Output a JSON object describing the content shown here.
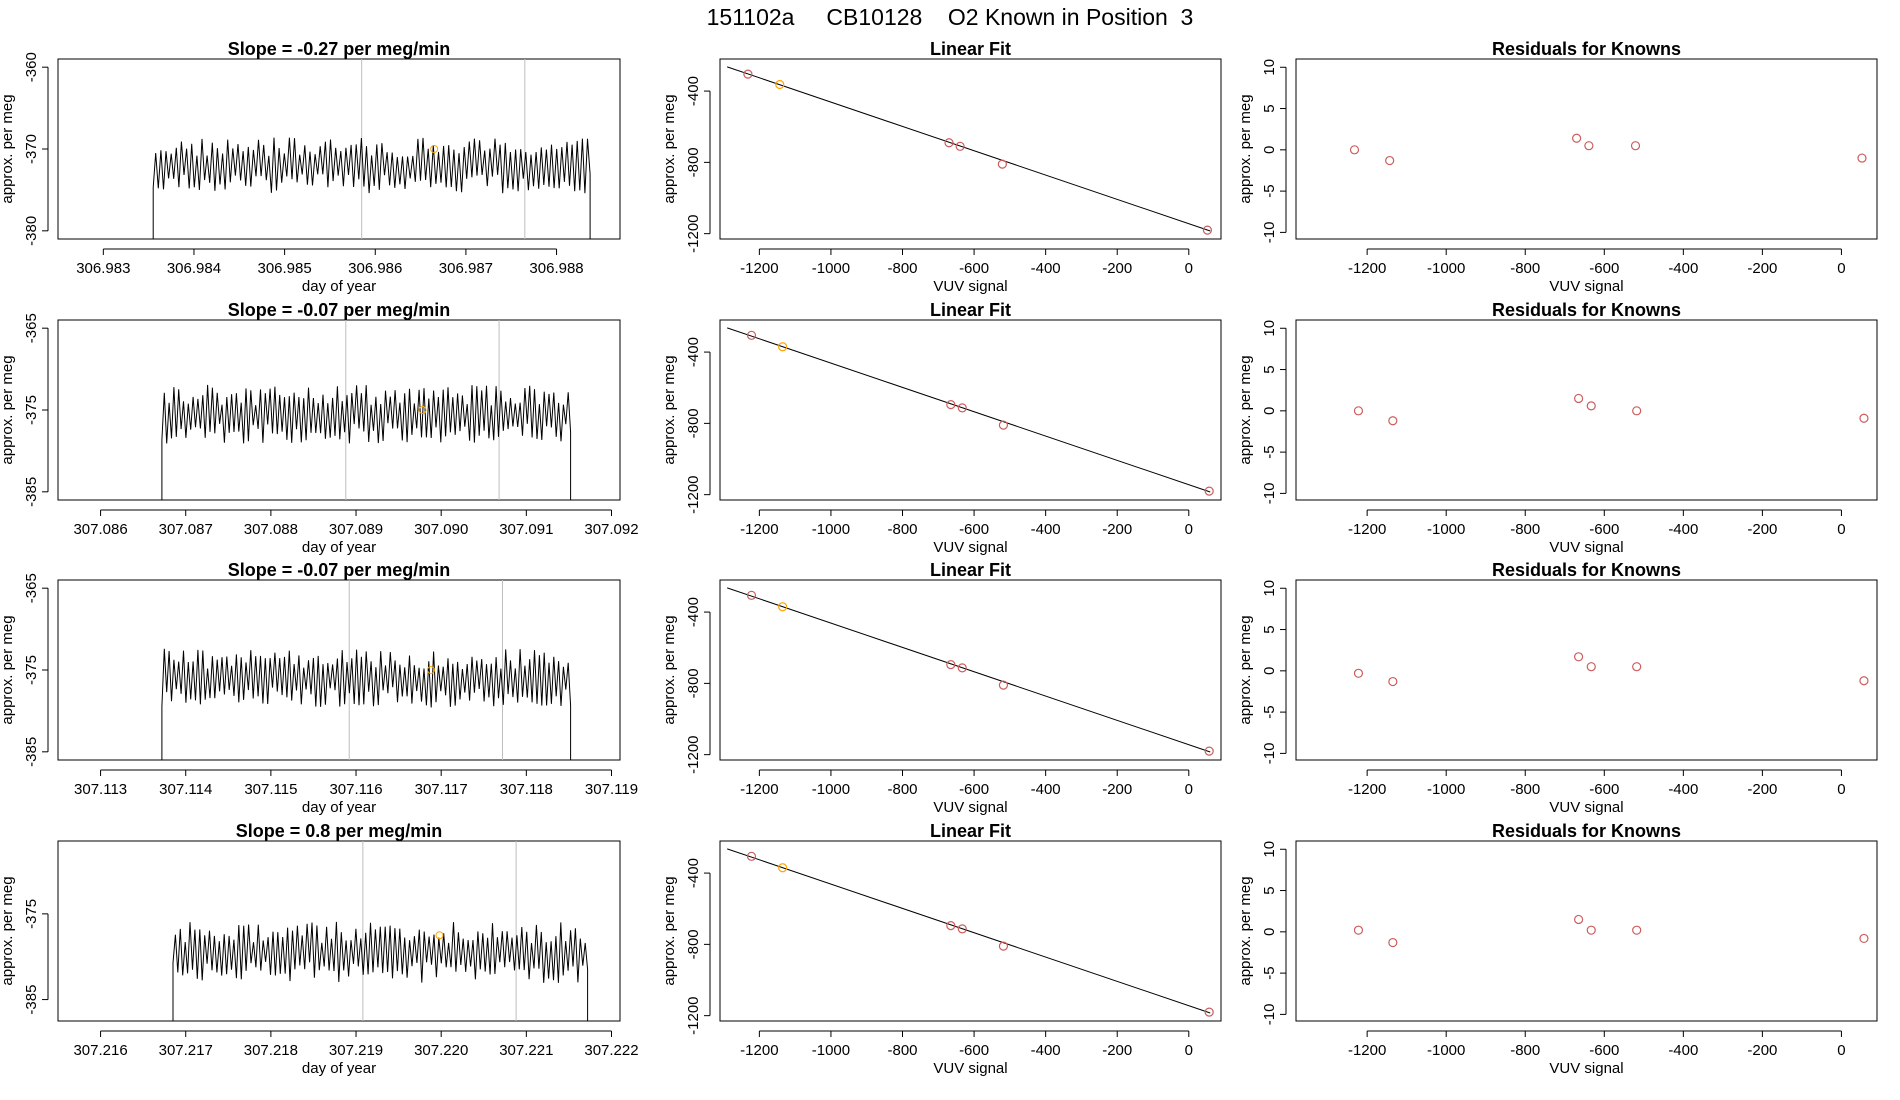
{
  "title": "151102a     CB10128    O2 Known in Position  3",
  "colors": {
    "trace": "#000000",
    "vline": "#bebebe",
    "knownPoint": "#cd5c5c",
    "highlight": "#ffa500",
    "fitLine": "#000000"
  },
  "chart_data": [
    {
      "type": "line",
      "row": 0,
      "title": "Slope =  -0.27  per meg/min",
      "xlabel": "day of year",
      "ylabel": "approx. per meg",
      "xlim": [
        306.9825,
        306.9887
      ],
      "ylim": [
        -381,
        -359
      ],
      "xticks": [
        306.983,
        306.984,
        306.985,
        306.986,
        306.987,
        306.988
      ],
      "xtick_labels": [
        "306.983",
        "306.984",
        "306.985",
        "306.986",
        "306.987",
        "306.988"
      ],
      "yticks": [
        -360,
        -370,
        -380
      ],
      "ytick_labels": [
        "-360",
        "-370",
        "-380"
      ],
      "trace_x_range": [
        306.98355,
        306.98837
      ],
      "trace_level": -372,
      "trace_amplitude": 3.4,
      "vlines": [
        306.98585,
        306.98765
      ],
      "highlight_point": {
        "x": 306.98665,
        "y": -370
      }
    },
    {
      "type": "scatter",
      "row": 0,
      "title": "Linear Fit",
      "xlabel": "VUV signal",
      "ylabel": "approx. per meg",
      "xlim": [
        -1310,
        90
      ],
      "ylim": [
        -1230,
        -220
      ],
      "xticks": [
        -1200,
        -1000,
        -800,
        -600,
        -400,
        -200,
        0
      ],
      "xtick_labels": [
        "-1200",
        "-1000",
        "-800",
        "-600",
        "-400",
        "-200",
        "0"
      ],
      "yticks": [
        -400,
        -800,
        -1200
      ],
      "ytick_labels": [
        "-400",
        "-800",
        "-1200"
      ],
      "x": [
        -1232,
        -1143,
        -670,
        -639,
        -521,
        52
      ],
      "y": [
        -305,
        -363,
        -690,
        -710,
        -810,
        -1180
      ],
      "point_colors": [
        "knownPoint",
        "highlight",
        "knownPoint",
        "knownPoint",
        "knownPoint",
        "knownPoint"
      ],
      "fit_line": {
        "x": [
          -1290,
          60
        ],
        "y": [
          -264,
          -1185
        ]
      }
    },
    {
      "type": "scatter",
      "row": 0,
      "title": "Residuals for Knowns",
      "xlabel": "VUV signal",
      "ylabel": "approx. per meg",
      "xlim": [
        -1380,
        90
      ],
      "ylim": [
        -10.8,
        11
      ],
      "xticks": [
        -1200,
        -1000,
        -800,
        -600,
        -400,
        -200,
        0
      ],
      "xtick_labels": [
        "-1200",
        "-1000",
        "-800",
        "-600",
        "-400",
        "-200",
        "0"
      ],
      "yticks": [
        10,
        5,
        0,
        -5,
        -10
      ],
      "ytick_labels": [
        "10",
        "5",
        "0",
        "-5",
        "-10"
      ],
      "x": [
        -1232,
        -1143,
        -670,
        -639,
        -521,
        52
      ],
      "y": [
        0,
        -1.3,
        1.4,
        0.5,
        0.5,
        -1
      ]
    },
    {
      "type": "line",
      "row": 1,
      "title": "Slope =  -0.07  per meg/min",
      "xlabel": "day of year",
      "ylabel": "approx. per meg",
      "xlim": [
        307.0855,
        307.0921
      ],
      "ylim": [
        -386,
        -364
      ],
      "xticks": [
        307.086,
        307.087,
        307.088,
        307.089,
        307.09,
        307.091,
        307.092
      ],
      "xtick_labels": [
        "307.086",
        "307.087",
        "307.088",
        "307.089",
        "307.090",
        "307.091",
        "307.092"
      ],
      "yticks": [
        -365,
        -375,
        -385
      ],
      "ytick_labels": [
        "-365",
        "-375",
        "-385"
      ],
      "trace_x_range": [
        307.08672,
        307.09152
      ],
      "trace_level": -375.5,
      "trace_amplitude": 3.6,
      "vlines": [
        307.08888,
        307.09068
      ],
      "highlight_point": {
        "x": 307.08978,
        "y": -375
      }
    },
    {
      "type": "scatter",
      "row": 1,
      "title": "Linear Fit",
      "xlabel": "VUV signal",
      "ylabel": "approx. per meg",
      "xlim": [
        -1310,
        90
      ],
      "ylim": [
        -1230,
        -220
      ],
      "xticks": [
        -1200,
        -1000,
        -800,
        -600,
        -400,
        -200,
        0
      ],
      "xtick_labels": [
        "-1200",
        "-1000",
        "-800",
        "-600",
        "-400",
        "-200",
        "0"
      ],
      "yticks": [
        -400,
        -800,
        -1200
      ],
      "ytick_labels": [
        "-400",
        "-800",
        "-1200"
      ],
      "x": [
        -1222,
        -1135,
        -665,
        -633,
        -518,
        57
      ],
      "y": [
        -306,
        -370,
        -695,
        -713,
        -810,
        -1180
      ],
      "point_colors": [
        "knownPoint",
        "highlight",
        "knownPoint",
        "knownPoint",
        "knownPoint",
        "knownPoint"
      ],
      "fit_line": {
        "x": [
          -1290,
          60
        ],
        "y": [
          -264,
          -1185
        ]
      }
    },
    {
      "type": "scatter",
      "row": 1,
      "title": "Residuals for Knowns",
      "xlabel": "VUV signal",
      "ylabel": "approx. per meg",
      "xlim": [
        -1380,
        90
      ],
      "ylim": [
        -10.8,
        11
      ],
      "xticks": [
        -1200,
        -1000,
        -800,
        -600,
        -400,
        -200,
        0
      ],
      "xtick_labels": [
        "-1200",
        "-1000",
        "-800",
        "-600",
        "-400",
        "-200",
        "0"
      ],
      "yticks": [
        10,
        5,
        0,
        -5,
        -10
      ],
      "ytick_labels": [
        "10",
        "5",
        "0",
        "-5",
        "-10"
      ],
      "x": [
        -1222,
        -1135,
        -665,
        -633,
        -518,
        57
      ],
      "y": [
        0,
        -1.2,
        1.5,
        0.6,
        0,
        -0.9
      ]
    },
    {
      "type": "line",
      "row": 2,
      "title": "Slope =  -0.07  per meg/min",
      "xlabel": "day of year",
      "ylabel": "approx. per meg",
      "xlim": [
        307.1125,
        307.1191
      ],
      "ylim": [
        -386,
        -364
      ],
      "xticks": [
        307.113,
        307.114,
        307.115,
        307.116,
        307.117,
        307.118,
        307.119
      ],
      "xtick_labels": [
        "307.113",
        "307.114",
        "307.115",
        "307.116",
        "307.117",
        "307.118",
        "307.119"
      ],
      "yticks": [
        -365,
        -375,
        -385
      ],
      "ytick_labels": [
        "-365",
        "-375",
        "-385"
      ],
      "trace_x_range": [
        307.11372,
        307.11852
      ],
      "trace_level": -376,
      "trace_amplitude": 3.6,
      "vlines": [
        307.11592,
        307.11772
      ],
      "highlight_point": {
        "x": 307.11688,
        "y": -375
      }
    },
    {
      "type": "scatter",
      "row": 2,
      "title": "Linear Fit",
      "xlabel": "VUV signal",
      "ylabel": "approx. per meg",
      "xlim": [
        -1310,
        90
      ],
      "ylim": [
        -1230,
        -220
      ],
      "xticks": [
        -1200,
        -1000,
        -800,
        -600,
        -400,
        -200,
        0
      ],
      "xtick_labels": [
        "-1200",
        "-1000",
        "-800",
        "-600",
        "-400",
        "-200",
        "0"
      ],
      "yticks": [
        -400,
        -800,
        -1200
      ],
      "ytick_labels": [
        "-400",
        "-800",
        "-1200"
      ],
      "x": [
        -1222,
        -1135,
        -665,
        -633,
        -518,
        57
      ],
      "y": [
        -306,
        -370,
        -695,
        -713,
        -810,
        -1180
      ],
      "point_colors": [
        "knownPoint",
        "highlight",
        "knownPoint",
        "knownPoint",
        "knownPoint",
        "knownPoint"
      ],
      "fit_line": {
        "x": [
          -1290,
          60
        ],
        "y": [
          -264,
          -1185
        ]
      }
    },
    {
      "type": "scatter",
      "row": 2,
      "title": "Residuals for Knowns",
      "xlabel": "VUV signal",
      "ylabel": "approx. per meg",
      "xlim": [
        -1380,
        90
      ],
      "ylim": [
        -10.8,
        11
      ],
      "xticks": [
        -1200,
        -1000,
        -800,
        -600,
        -400,
        -200,
        0
      ],
      "xtick_labels": [
        "-1200",
        "-1000",
        "-800",
        "-600",
        "-400",
        "-200",
        "0"
      ],
      "yticks": [
        10,
        5,
        0,
        -5,
        -10
      ],
      "ytick_labels": [
        "10",
        "5",
        "0",
        "-5",
        "-10"
      ],
      "x": [
        -1222,
        -1135,
        -665,
        -633,
        -518,
        57
      ],
      "y": [
        -0.3,
        -1.3,
        1.7,
        0.5,
        0.5,
        -1.2
      ]
    },
    {
      "type": "line",
      "row": 3,
      "title": "Slope =  0.8  per meg/min",
      "xlabel": "day of year",
      "ylabel": "approx. per meg",
      "xlim": [
        307.2155,
        307.2221
      ],
      "ylim": [
        -387.5,
        -366.5
      ],
      "xticks": [
        307.216,
        307.217,
        307.218,
        307.219,
        307.22,
        307.221,
        307.222
      ],
      "xtick_labels": [
        "307.216",
        "307.217",
        "307.218",
        "307.219",
        "307.220",
        "307.221",
        "307.222"
      ],
      "yticks": [
        -375,
        -385
      ],
      "ytick_labels": [
        "-375",
        "-385"
      ],
      "trace_x_range": [
        307.21685,
        307.22172
      ],
      "trace_level": -379.5,
      "trace_amplitude": 3.6,
      "vlines": [
        307.21908,
        307.22088
      ],
      "highlight_point": {
        "x": 307.21998,
        "y": -377.5
      }
    },
    {
      "type": "scatter",
      "row": 3,
      "title": "Linear Fit",
      "xlabel": "VUV signal",
      "ylabel": "approx. per meg",
      "xlim": [
        -1310,
        90
      ],
      "ylim": [
        -1230,
        -220
      ],
      "xticks": [
        -1200,
        -1000,
        -800,
        -600,
        -400,
        -200,
        0
      ],
      "xtick_labels": [
        "-1200",
        "-1000",
        "-800",
        "-600",
        "-400",
        "-200",
        "0"
      ],
      "yticks": [
        -400,
        -800,
        -1200
      ],
      "ytick_labels": [
        "-400",
        "-800",
        "-1200"
      ],
      "x": [
        -1222,
        -1135,
        -665,
        -633,
        -518,
        57
      ],
      "y": [
        -306,
        -370,
        -695,
        -713,
        -810,
        -1180
      ],
      "point_colors": [
        "knownPoint",
        "highlight",
        "knownPoint",
        "knownPoint",
        "knownPoint",
        "knownPoint"
      ],
      "fit_line": {
        "x": [
          -1290,
          60
        ],
        "y": [
          -264,
          -1185
        ]
      }
    },
    {
      "type": "scatter",
      "row": 3,
      "title": "Residuals for Knowns",
      "xlabel": "VUV signal",
      "ylabel": "approx. per meg",
      "xlim": [
        -1380,
        90
      ],
      "ylim": [
        -10.8,
        11
      ],
      "xticks": [
        -1200,
        -1000,
        -800,
        -600,
        -400,
        -200,
        0
      ],
      "xtick_labels": [
        "-1200",
        "-1000",
        "-800",
        "-600",
        "-400",
        "-200",
        "0"
      ],
      "yticks": [
        10,
        5,
        0,
        -5,
        -10
      ],
      "ytick_labels": [
        "10",
        "5",
        "0",
        "-5",
        "-10"
      ],
      "x": [
        -1222,
        -1135,
        -665,
        -633,
        -518,
        57
      ],
      "y": [
        0.2,
        -1.3,
        1.5,
        0.2,
        0.2,
        -0.8
      ]
    }
  ]
}
